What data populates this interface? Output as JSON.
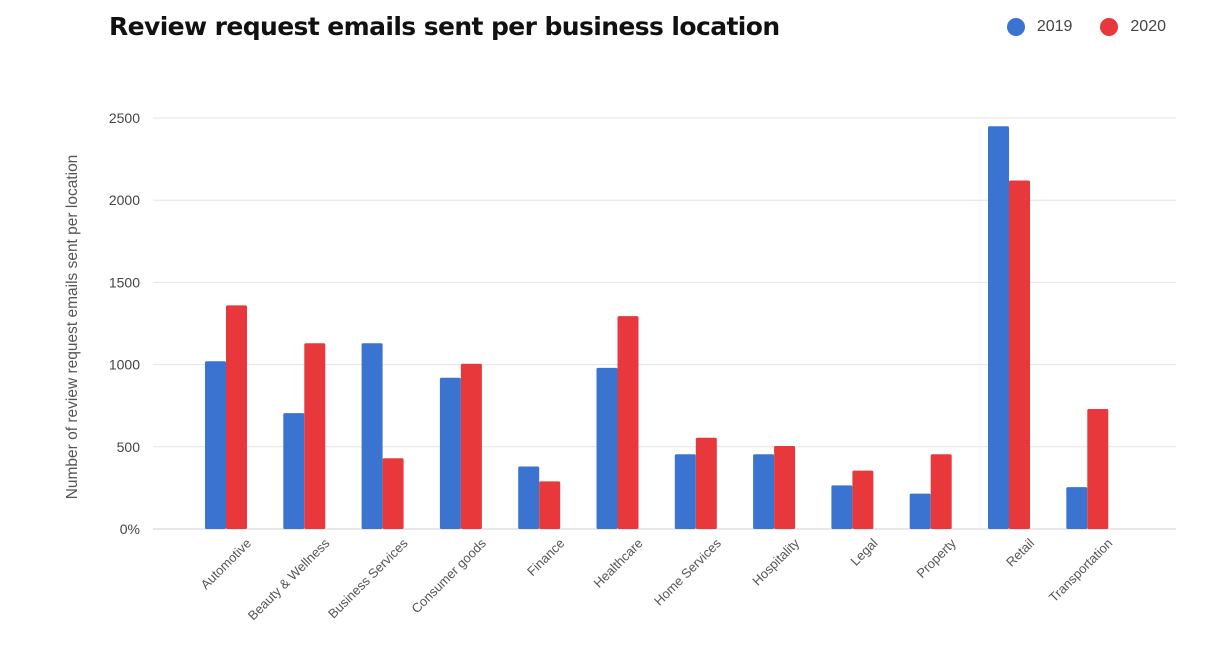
{
  "chart_data": {
    "type": "bar",
    "title": "Review request emails sent per business location",
    "ylabel": "Number of review request emails sent per location",
    "xlabel": "",
    "ylim": [
      0,
      2500
    ],
    "yticks": [
      {
        "value": 0,
        "label": "0%"
      },
      {
        "value": 500,
        "label": "500"
      },
      {
        "value": 1000,
        "label": "1000"
      },
      {
        "value": 1500,
        "label": "1500"
      },
      {
        "value": 2000,
        "label": "2000"
      },
      {
        "value": 2500,
        "label": "2500"
      }
    ],
    "grid": true,
    "legend_position": "top-right",
    "categories": [
      "Automotive",
      "Beauty & Wellness",
      "Business Services",
      "Consumer goods",
      "Finance",
      "Healthcare",
      "Home Services",
      "Hospitality",
      "Legal",
      "Property",
      "Retail",
      "Transportation"
    ],
    "series": [
      {
        "name": "2019",
        "color": "#3b73d1",
        "values": [
          1020,
          705,
          1130,
          920,
          380,
          980,
          455,
          455,
          265,
          215,
          2450,
          255
        ]
      },
      {
        "name": "2020",
        "color": "#e8383b",
        "values": [
          1360,
          1130,
          430,
          1005,
          290,
          1295,
          555,
          505,
          355,
          455,
          2120,
          730
        ]
      }
    ]
  }
}
